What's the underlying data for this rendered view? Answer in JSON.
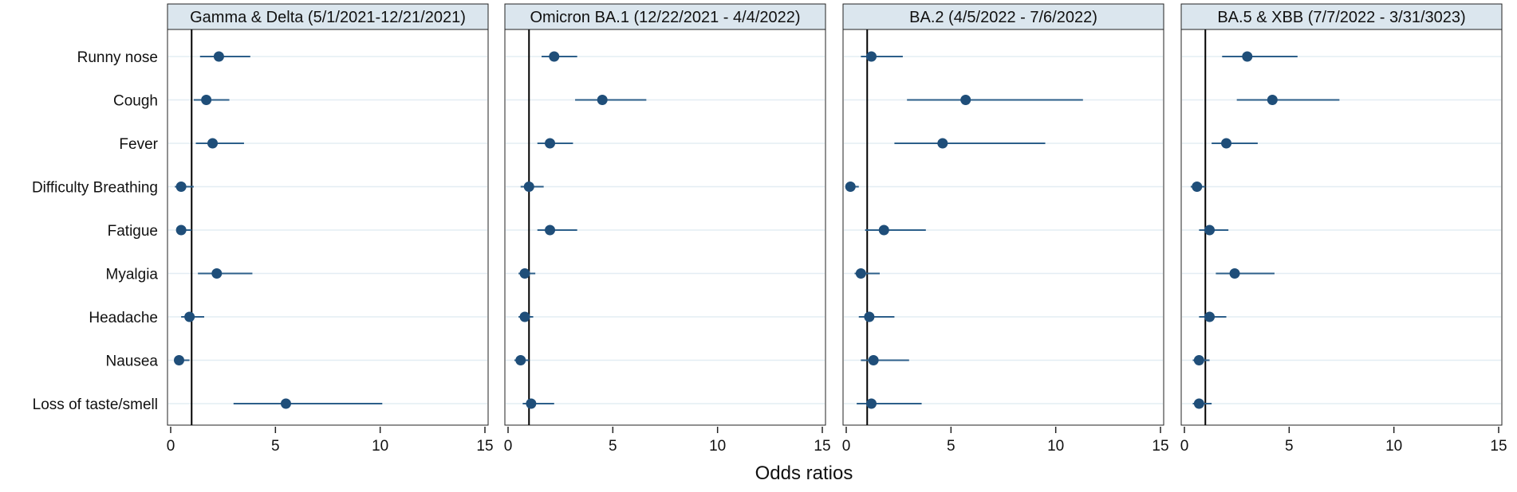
{
  "chart_data": {
    "type": "forest",
    "xlabel": "Odds ratios",
    "xlim": [
      0,
      15
    ],
    "xticks": [
      0,
      5,
      10,
      15
    ],
    "reference_line": 1,
    "grid": true,
    "colors": {
      "point": "#1f4e79",
      "ci": "#2c5f8a",
      "row_grid": "#e3edf3",
      "title_bg": "#dbe6ee",
      "frame": "#222222",
      "ref": "#000000"
    },
    "rows": [
      "Runny nose",
      "Cough",
      "Fever",
      "Difficulty Breathing",
      "Fatigue",
      "Myalgia",
      "Headache",
      "Nausea",
      "Loss of taste/smell"
    ],
    "panels": [
      {
        "title": "Gamma & Delta (5/1/2021-12/21/2021)",
        "estimates": [
          2.3,
          1.7,
          2.0,
          0.5,
          0.5,
          2.2,
          0.9,
          0.4,
          5.5
        ],
        "lower": [
          1.4,
          1.1,
          1.2,
          0.2,
          0.3,
          1.3,
          0.5,
          0.2,
          3.0
        ],
        "upper": [
          3.8,
          2.8,
          3.5,
          1.1,
          1.0,
          3.9,
          1.6,
          0.9,
          10.1
        ]
      },
      {
        "title": "Omicron BA.1 (12/22/2021 - 4/4/2022)",
        "estimates": [
          2.2,
          4.5,
          2.0,
          1.0,
          2.0,
          0.8,
          0.8,
          0.6,
          1.1
        ],
        "lower": [
          1.6,
          3.2,
          1.4,
          0.6,
          1.4,
          0.5,
          0.5,
          0.3,
          0.7
        ],
        "upper": [
          3.3,
          6.6,
          3.1,
          1.7,
          3.3,
          1.3,
          1.2,
          1.0,
          2.2
        ]
      },
      {
        "title": "BA.2 (4/5/2022 - 7/6/2022)",
        "estimates": [
          1.2,
          5.7,
          4.6,
          0.2,
          1.8,
          0.7,
          1.1,
          1.3,
          1.2
        ],
        "lower": [
          0.7,
          2.9,
          2.3,
          0.1,
          0.9,
          0.4,
          0.6,
          0.7,
          0.5
        ],
        "upper": [
          2.7,
          11.3,
          9.5,
          0.6,
          3.8,
          1.6,
          2.3,
          3.0,
          3.6
        ]
      },
      {
        "title": "BA.5 & XBB (7/7/2022 - 3/31/3023)",
        "estimates": [
          3.0,
          4.2,
          2.0,
          0.6,
          1.2,
          2.4,
          1.2,
          0.7,
          0.7
        ],
        "lower": [
          1.8,
          2.5,
          1.3,
          0.3,
          0.7,
          1.5,
          0.7,
          0.4,
          0.4
        ],
        "upper": [
          5.4,
          7.4,
          3.5,
          1.0,
          2.1,
          4.3,
          2.0,
          1.2,
          1.3
        ]
      }
    ]
  }
}
